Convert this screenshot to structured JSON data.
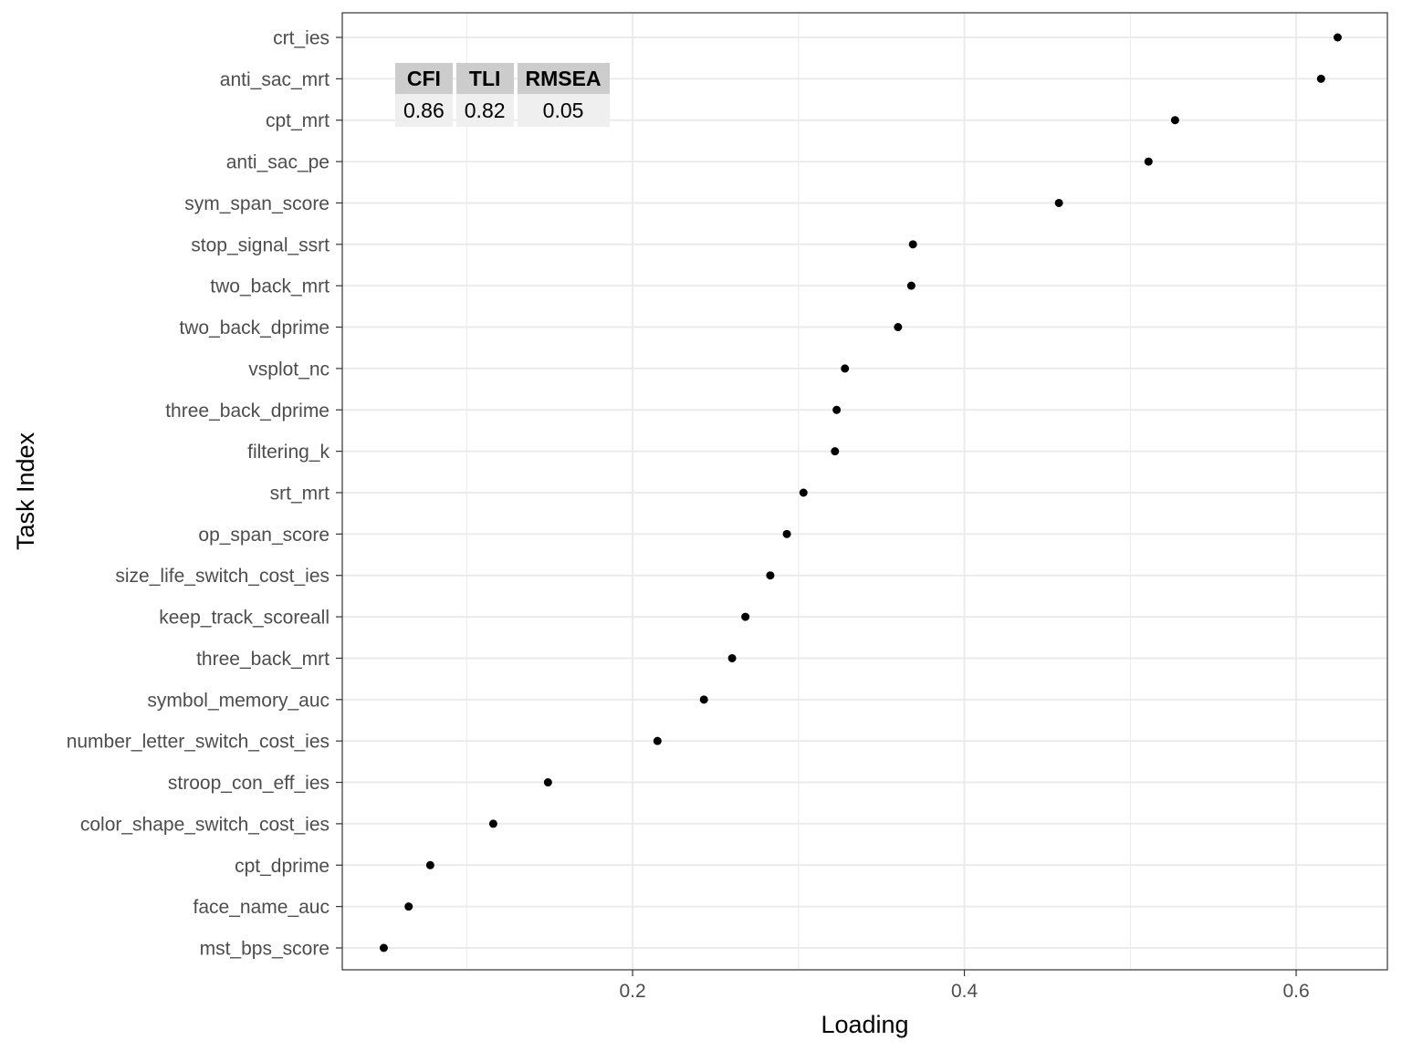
{
  "chart_data": {
    "type": "scatter",
    "xlabel": "Loading",
    "ylabel": "Task Index",
    "xlim": [
      0.025,
      0.655
    ],
    "x_ticks": [
      0.2,
      0.4,
      0.6
    ],
    "x_tick_labels": [
      "0.2",
      "0.4",
      "0.6"
    ],
    "grid": true,
    "points": [
      {
        "task": "crt_ies",
        "loading": 0.625
      },
      {
        "task": "anti_sac_mrt",
        "loading": 0.615
      },
      {
        "task": "cpt_mrt",
        "loading": 0.527
      },
      {
        "task": "anti_sac_pe",
        "loading": 0.511
      },
      {
        "task": "sym_span_score",
        "loading": 0.457
      },
      {
        "task": "stop_signal_ssrt",
        "loading": 0.369
      },
      {
        "task": "two_back_mrt",
        "loading": 0.368
      },
      {
        "task": "two_back_dprime",
        "loading": 0.36
      },
      {
        "task": "vsplot_nc",
        "loading": 0.328
      },
      {
        "task": "three_back_dprime",
        "loading": 0.323
      },
      {
        "task": "filtering_k",
        "loading": 0.322
      },
      {
        "task": "srt_mrt",
        "loading": 0.303
      },
      {
        "task": "op_span_score",
        "loading": 0.293
      },
      {
        "task": "size_life_switch_cost_ies",
        "loading": 0.283
      },
      {
        "task": "keep_track_scoreall",
        "loading": 0.268
      },
      {
        "task": "three_back_mrt",
        "loading": 0.26
      },
      {
        "task": "symbol_memory_auc",
        "loading": 0.243
      },
      {
        "task": "number_letter_switch_cost_ies",
        "loading": 0.215
      },
      {
        "task": "stroop_con_eff_ies",
        "loading": 0.149
      },
      {
        "task": "color_shape_switch_cost_ies",
        "loading": 0.116
      },
      {
        "task": "cpt_dprime",
        "loading": 0.078
      },
      {
        "task": "face_name_auc",
        "loading": 0.065
      },
      {
        "task": "mst_bps_score",
        "loading": 0.05
      }
    ],
    "fit_table": {
      "headers": [
        "CFI",
        "TLI",
        "RMSEA"
      ],
      "values": [
        "0.86",
        "0.82",
        "0.05"
      ]
    },
    "colors": {
      "point": "#000000",
      "grid": "#ebebeb",
      "panel_border": "#333333",
      "table_header": "#cccccc",
      "table_cell": "#efefef"
    }
  }
}
